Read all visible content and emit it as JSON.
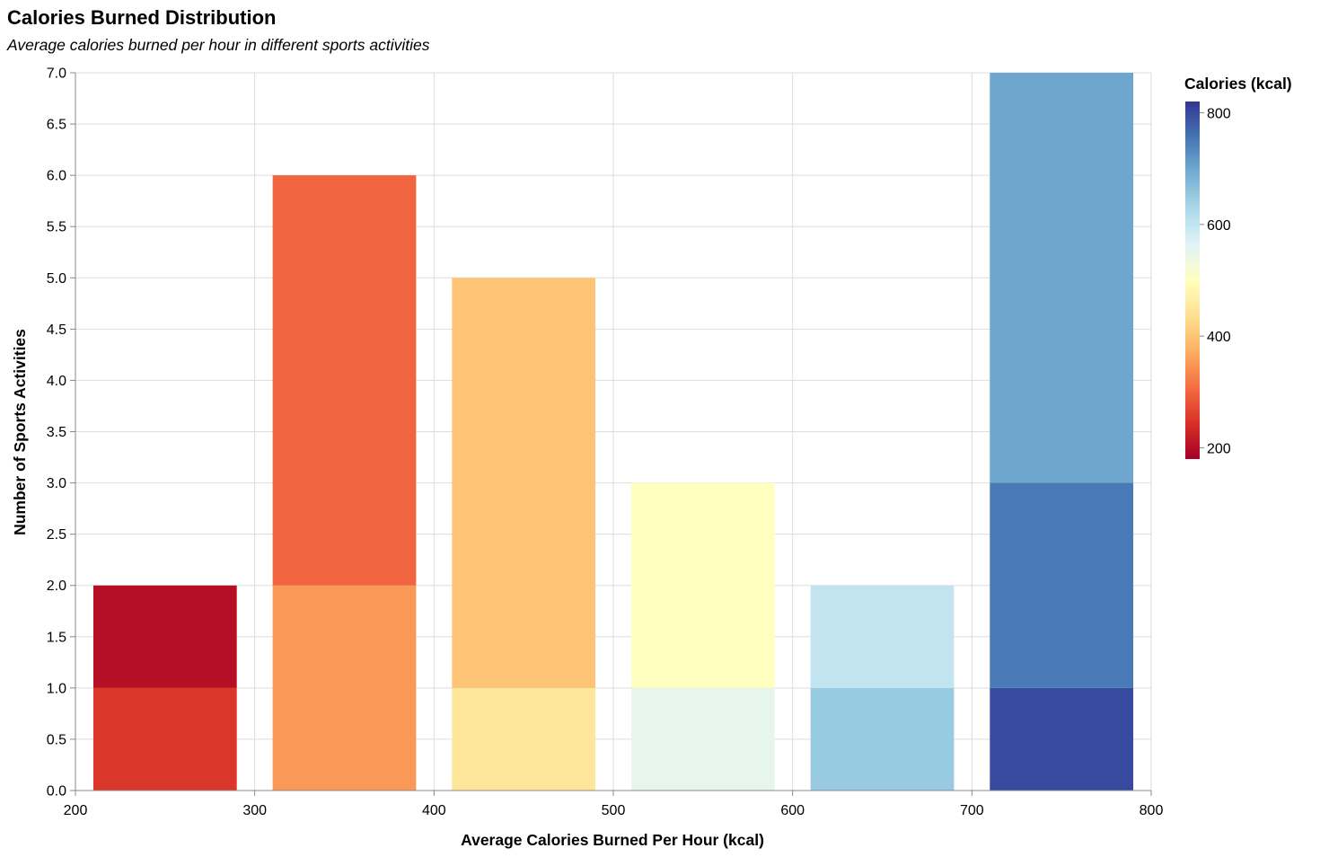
{
  "chart_data": {
    "type": "bar",
    "title": "Calories Burned Distribution",
    "subtitle": "Average calories burned per hour in different sports activities",
    "xlabel": "Average Calories Burned Per Hour (kcal)",
    "ylabel": "Number of Sports Activities",
    "xlim": [
      200,
      800
    ],
    "ylim": [
      0,
      7
    ],
    "x_ticks": [
      "200",
      "300",
      "400",
      "500",
      "600",
      "700",
      "800"
    ],
    "y_ticks": [
      "0.0",
      "0.5",
      "1.0",
      "1.5",
      "2.0",
      "2.5",
      "3.0",
      "3.5",
      "4.0",
      "4.5",
      "5.0",
      "5.5",
      "6.0",
      "6.5",
      "7.0"
    ],
    "grid": true,
    "bin_width": 100,
    "bar_segments": [
      {
        "bin_start": 200,
        "bin_end": 300,
        "y0": 0,
        "y1": 1,
        "calories": 250
      },
      {
        "bin_start": 200,
        "bin_end": 300,
        "y0": 1,
        "y1": 2,
        "calories": 200
      },
      {
        "bin_start": 300,
        "bin_end": 400,
        "y0": 0,
        "y1": 2,
        "calories": 350
      },
      {
        "bin_start": 300,
        "bin_end": 400,
        "y0": 2,
        "y1": 6,
        "calories": 300
      },
      {
        "bin_start": 400,
        "bin_end": 500,
        "y0": 0,
        "y1": 1,
        "calories": 450
      },
      {
        "bin_start": 400,
        "bin_end": 500,
        "y0": 1,
        "y1": 5,
        "calories": 400
      },
      {
        "bin_start": 500,
        "bin_end": 600,
        "y0": 0,
        "y1": 1,
        "calories": 550
      },
      {
        "bin_start": 500,
        "bin_end": 600,
        "y0": 1,
        "y1": 3,
        "calories": 500
      },
      {
        "bin_start": 600,
        "bin_end": 700,
        "y0": 0,
        "y1": 1,
        "calories": 650
      },
      {
        "bin_start": 600,
        "bin_end": 700,
        "y0": 1,
        "y1": 2,
        "calories": 600
      },
      {
        "bin_start": 700,
        "bin_end": 800,
        "y0": 0,
        "y1": 1,
        "calories": 800
      },
      {
        "bin_start": 700,
        "bin_end": 800,
        "y0": 1,
        "y1": 3,
        "calories": 750
      },
      {
        "bin_start": 700,
        "bin_end": 800,
        "y0": 3,
        "y1": 7,
        "calories": 700
      }
    ],
    "legend": {
      "title": "Calories (kcal)",
      "placement": "right",
      "domain": [
        180,
        820
      ],
      "ticks": [
        "200",
        "400",
        "600",
        "800"
      ],
      "colors": [
        "#a50026",
        "#d73027",
        "#f46d43",
        "#fdae61",
        "#fee090",
        "#ffffbf",
        "#e0f3f8",
        "#abd9e9",
        "#74add1",
        "#4575b4",
        "#313695"
      ]
    },
    "colors": {
      "grid": "#dddddd",
      "axis": "#888888",
      "text": "#000000"
    }
  }
}
